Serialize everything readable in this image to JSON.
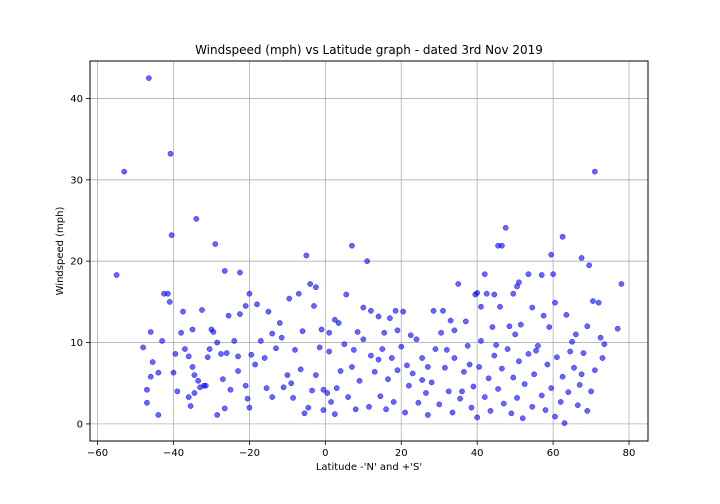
{
  "chart_data": {
    "type": "scatter",
    "title": "Windspeed (mph) vs Latitude graph - dated 3rd Nov 2019",
    "xlabel": "Latitude -'N' and +'S'",
    "ylabel": "Windspeed (mph)",
    "xlim": [
      -62,
      85
    ],
    "ylim": [
      -2.1,
      44.6
    ],
    "xticks": [
      -60,
      -40,
      -20,
      0,
      20,
      40,
      60,
      80
    ],
    "yticks": [
      0,
      10,
      20,
      30,
      40
    ],
    "grid": true,
    "marker_color": "#0000ff",
    "marker_opacity": 0.6,
    "series": [
      {
        "points": [
          [
            -46.5,
            42.5
          ],
          [
            -53.0,
            31.0
          ],
          [
            -40.8,
            33.2
          ],
          [
            -55.0,
            18.3
          ],
          [
            -40.5,
            23.2
          ],
          [
            -34.0,
            25.2
          ],
          [
            -29.0,
            22.1
          ],
          [
            -26.5,
            18.8
          ],
          [
            -22.5,
            18.6
          ],
          [
            -41.5,
            16.0
          ],
          [
            -42.5,
            16.0
          ],
          [
            -41.0,
            15.0
          ],
          [
            -46.0,
            11.3
          ],
          [
            -43.0,
            10.2
          ],
          [
            -38.0,
            11.2
          ],
          [
            -35.0,
            11.6
          ],
          [
            -30.0,
            11.6
          ],
          [
            -29.5,
            11.3
          ],
          [
            -26.0,
            8.7
          ],
          [
            -24.0,
            10.2
          ],
          [
            -20.0,
            16.0
          ],
          [
            -21.0,
            14.5
          ],
          [
            -22.5,
            13.5
          ],
          [
            -15.0,
            13.8
          ],
          [
            -12.0,
            12.4
          ],
          [
            -9.5,
            15.4
          ],
          [
            -7.0,
            16.0
          ],
          [
            -5.0,
            20.7
          ],
          [
            -4.0,
            17.2
          ],
          [
            -2.5,
            16.8
          ],
          [
            -3.0,
            14.5
          ],
          [
            -1.0,
            11.6
          ],
          [
            1.0,
            11.2
          ],
          [
            2.5,
            12.8
          ],
          [
            7.0,
            21.9
          ],
          [
            11.0,
            20.0
          ],
          [
            5.5,
            15.9
          ],
          [
            10.0,
            14.3
          ],
          [
            14.0,
            13.2
          ],
          [
            17.0,
            13.0
          ],
          [
            18.5,
            13.9
          ],
          [
            20.5,
            13.8
          ],
          [
            24.0,
            10.4
          ],
          [
            28.5,
            13.9
          ],
          [
            31.0,
            13.9
          ],
          [
            34.0,
            11.5
          ],
          [
            35.0,
            17.2
          ],
          [
            39.5,
            15.9
          ],
          [
            40.0,
            16.1
          ],
          [
            42.0,
            18.4
          ],
          [
            42.5,
            16.0
          ],
          [
            44.5,
            15.9
          ],
          [
            45.5,
            21.9
          ],
          [
            46.5,
            21.9
          ],
          [
            47.5,
            24.1
          ],
          [
            49.5,
            16.0
          ],
          [
            50.5,
            16.9
          ],
          [
            51.0,
            17.4
          ],
          [
            53.5,
            18.4
          ],
          [
            57.0,
            18.3
          ],
          [
            59.5,
            20.8
          ],
          [
            60.0,
            18.4
          ],
          [
            62.5,
            23.0
          ],
          [
            67.5,
            20.4
          ],
          [
            69.5,
            19.5
          ],
          [
            71.0,
            31.0
          ],
          [
            70.5,
            15.1
          ],
          [
            72.0,
            14.9
          ],
          [
            78.0,
            17.2
          ],
          [
            77.0,
            11.7
          ],
          [
            73.5,
            9.8
          ],
          [
            69.0,
            12.0
          ],
          [
            -48.0,
            9.4
          ],
          [
            -45.5,
            7.6
          ],
          [
            -44.0,
            6.3
          ],
          [
            -47.0,
            4.2
          ],
          [
            -46.0,
            5.8
          ],
          [
            -47.0,
            2.6
          ],
          [
            -44.0,
            1.1
          ],
          [
            -40.0,
            6.3
          ],
          [
            -39.0,
            4.0
          ],
          [
            -37.0,
            9.2
          ],
          [
            -36.0,
            8.3
          ],
          [
            -35.0,
            7.0
          ],
          [
            -34.5,
            6.0
          ],
          [
            -33.5,
            5.3
          ],
          [
            -34.5,
            3.8
          ],
          [
            -35.5,
            2.2
          ],
          [
            -36.0,
            3.3
          ],
          [
            -33.0,
            4.5
          ],
          [
            -32.0,
            4.7
          ],
          [
            -31.0,
            8.2
          ],
          [
            -30.5,
            9.2
          ],
          [
            -28.5,
            10.0
          ],
          [
            -27.5,
            8.6
          ],
          [
            -27.0,
            5.5
          ],
          [
            -26.5,
            1.9
          ],
          [
            -28.5,
            1.1
          ],
          [
            -25.0,
            4.2
          ],
          [
            -23.0,
            6.5
          ],
          [
            -21.0,
            4.7
          ],
          [
            -20.5,
            3.1
          ],
          [
            -20.0,
            2.0
          ],
          [
            -19.5,
            8.5
          ],
          [
            -18.5,
            7.3
          ],
          [
            -17.0,
            10.2
          ],
          [
            -16.0,
            8.1
          ],
          [
            -15.5,
            4.4
          ],
          [
            -14.0,
            3.3
          ],
          [
            -13.0,
            9.3
          ],
          [
            -11.0,
            4.5
          ],
          [
            -10.0,
            6.0
          ],
          [
            -8.5,
            3.2
          ],
          [
            -8.0,
            9.1
          ],
          [
            -6.5,
            6.7
          ],
          [
            -5.5,
            1.3
          ],
          [
            -4.5,
            2.0
          ],
          [
            -3.5,
            4.1
          ],
          [
            -2.5,
            6.0
          ],
          [
            -1.5,
            9.4
          ],
          [
            -0.5,
            1.7
          ],
          [
            0.5,
            3.8
          ],
          [
            1.5,
            2.7
          ],
          [
            2.5,
            1.2
          ],
          [
            3.0,
            4.4
          ],
          [
            4.0,
            6.5
          ],
          [
            5.0,
            9.8
          ],
          [
            6.0,
            3.3
          ],
          [
            7.0,
            7.0
          ],
          [
            8.0,
            1.8
          ],
          [
            9.0,
            5.3
          ],
          [
            10.0,
            10.4
          ],
          [
            11.5,
            2.1
          ],
          [
            12.0,
            8.4
          ],
          [
            13.0,
            6.4
          ],
          [
            14.5,
            3.4
          ],
          [
            15.0,
            9.2
          ],
          [
            16.0,
            1.8
          ],
          [
            16.5,
            5.5
          ],
          [
            17.5,
            8.1
          ],
          [
            18.0,
            2.7
          ],
          [
            19.0,
            6.6
          ],
          [
            20.0,
            9.5
          ],
          [
            21.0,
            1.4
          ],
          [
            22.0,
            4.7
          ],
          [
            23.0,
            6.2
          ],
          [
            24.5,
            2.6
          ],
          [
            25.5,
            8.1
          ],
          [
            26.5,
            3.8
          ],
          [
            27.0,
            1.1
          ],
          [
            28.0,
            5.1
          ],
          [
            29.0,
            9.2
          ],
          [
            30.0,
            2.4
          ],
          [
            31.5,
            6.9
          ],
          [
            32.5,
            4.0
          ],
          [
            33.5,
            1.4
          ],
          [
            34.0,
            8.1
          ],
          [
            35.5,
            3.1
          ],
          [
            36.5,
            6.4
          ],
          [
            37.5,
            9.6
          ],
          [
            38.5,
            2.0
          ],
          [
            39.0,
            4.6
          ],
          [
            40.0,
            0.8
          ],
          [
            40.5,
            7.0
          ],
          [
            41.0,
            10.2
          ],
          [
            42.0,
            3.3
          ],
          [
            43.0,
            5.6
          ],
          [
            43.5,
            1.6
          ],
          [
            44.5,
            8.4
          ],
          [
            45.5,
            4.3
          ],
          [
            46.5,
            6.8
          ],
          [
            47.0,
            2.5
          ],
          [
            48.0,
            9.2
          ],
          [
            49.0,
            1.3
          ],
          [
            49.5,
            5.7
          ],
          [
            50.5,
            3.2
          ],
          [
            51.0,
            7.7
          ],
          [
            52.0,
            0.7
          ],
          [
            52.5,
            4.9
          ],
          [
            53.5,
            8.6
          ],
          [
            54.5,
            2.1
          ],
          [
            55.0,
            6.1
          ],
          [
            56.0,
            9.6
          ],
          [
            57.0,
            3.5
          ],
          [
            58.0,
            1.7
          ],
          [
            58.5,
            7.3
          ],
          [
            59.5,
            4.4
          ],
          [
            60.5,
            0.9
          ],
          [
            61.0,
            8.2
          ],
          [
            62.0,
            2.7
          ],
          [
            62.5,
            5.8
          ],
          [
            63.0,
            0.1
          ],
          [
            64.0,
            3.9
          ],
          [
            65.0,
            10.1
          ],
          [
            65.5,
            6.9
          ],
          [
            66.5,
            2.3
          ],
          [
            67.0,
            4.8
          ],
          [
            68.0,
            8.7
          ],
          [
            69.0,
            1.6
          ],
          [
            70.0,
            4.0
          ],
          [
            71.0,
            6.6
          ],
          [
            72.5,
            10.6
          ],
          [
            73.0,
            8.1
          ],
          [
            -31.5,
            4.7
          ],
          [
            -25.5,
            13.3
          ],
          [
            -18.0,
            14.7
          ],
          [
            -14.0,
            11.1
          ],
          [
            -6.0,
            11.4
          ],
          [
            -0.5,
            4.2
          ],
          [
            3.5,
            12.4
          ],
          [
            7.5,
            9.1
          ],
          [
            12.0,
            13.9
          ],
          [
            15.5,
            11.2
          ],
          [
            19.0,
            11.5
          ],
          [
            22.5,
            10.9
          ],
          [
            27.0,
            7.0
          ],
          [
            30.5,
            11.2
          ],
          [
            33.0,
            12.7
          ],
          [
            37.0,
            12.6
          ],
          [
            41.0,
            14.4
          ],
          [
            44.0,
            11.9
          ],
          [
            46.0,
            14.4
          ],
          [
            48.5,
            12.0
          ],
          [
            51.5,
            12.2
          ],
          [
            54.5,
            14.3
          ],
          [
            57.5,
            13.3
          ],
          [
            60.5,
            14.9
          ],
          [
            63.5,
            13.4
          ],
          [
            66.0,
            11.0
          ],
          [
            -37.5,
            13.8
          ],
          [
            -32.5,
            14.0
          ],
          [
            -39.5,
            8.6
          ],
          [
            -23.0,
            8.3
          ],
          [
            -9.0,
            5.0
          ],
          [
            -11.5,
            10.6
          ],
          [
            1.0,
            8.9
          ],
          [
            8.5,
            11.3
          ],
          [
            14.0,
            7.9
          ],
          [
            21.5,
            7.2
          ],
          [
            25.5,
            5.4
          ],
          [
            32.0,
            9.1
          ],
          [
            36.0,
            4.0
          ],
          [
            38.0,
            7.3
          ],
          [
            45.0,
            9.7
          ],
          [
            50.0,
            11.0
          ],
          [
            55.5,
            9.0
          ],
          [
            59.0,
            11.9
          ],
          [
            64.5,
            8.9
          ],
          [
            67.5,
            6.1
          ]
        ]
      }
    ]
  }
}
